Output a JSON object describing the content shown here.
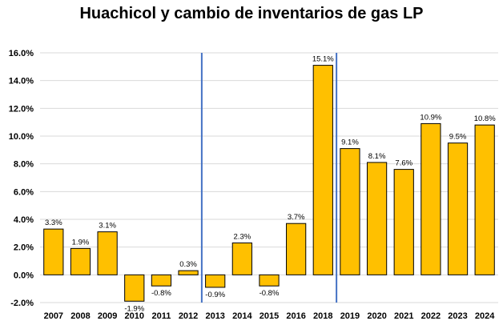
{
  "chart_data": {
    "type": "bar",
    "title": "Huachicol y cambio de inventarios de gas LP",
    "xlabel": "",
    "ylabel": "",
    "categories": [
      "2007",
      "2008",
      "2009",
      "2010",
      "2011",
      "2012",
      "2013",
      "2014",
      "2015",
      "2016",
      "2018",
      "2019",
      "2020",
      "2021",
      "2022",
      "2023",
      "2024"
    ],
    "values": [
      3.3,
      1.9,
      3.1,
      -1.9,
      -0.8,
      0.3,
      -0.9,
      2.3,
      -0.8,
      3.7,
      15.1,
      9.1,
      8.1,
      7.6,
      10.9,
      9.5,
      10.8
    ],
    "data_labels": [
      "3.3%",
      "1.9%",
      "3.1%",
      "-1.9%",
      "-0.8%",
      "0.3%",
      "-0.9%",
      "2.3%",
      "-0.8%",
      "3.7%",
      "15.1%",
      "9.1%",
      "8.1%",
      "7.6%",
      "10.9%",
      "9.5%",
      "10.8%"
    ],
    "ylim": [
      -2,
      16
    ],
    "yticks": [
      -2,
      0,
      2,
      4,
      6,
      8,
      10,
      12,
      14,
      16
    ],
    "ytick_labels": [
      "-2.0%",
      "0.0%",
      "2.0%",
      "4.0%",
      "6.0%",
      "8.0%",
      "10.0%",
      "12.0%",
      "14.0%",
      "16.0%"
    ],
    "grid": true,
    "legend": "none",
    "bar_color": "#FFC000",
    "bar_edge_color": "#000000",
    "reference_lines": [
      {
        "between": [
          "2012",
          "2013"
        ],
        "color": "#4472C4"
      },
      {
        "between": [
          "2018",
          "2019"
        ],
        "color": "#4472C4"
      }
    ]
  }
}
